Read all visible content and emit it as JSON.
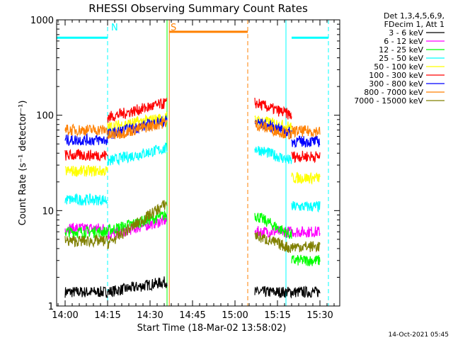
{
  "chart_data": {
    "type": "line",
    "title": "RHESSI Observing Summary Count Rates",
    "xlabel": "Start Time (18-Mar-02 13:58:02)",
    "ylabel": "Count Rate (s⁻¹ detector⁻¹)",
    "yscale": "log",
    "ylim": [
      1,
      1000
    ],
    "xlim_minutes": [
      -3,
      97
    ],
    "x_ticks": [
      {
        "label": "14:00",
        "minutes": 0
      },
      {
        "label": "14:15",
        "minutes": 15
      },
      {
        "label": "14:30",
        "minutes": 30
      },
      {
        "label": "14:45",
        "minutes": 45
      },
      {
        "label": "15:00",
        "minutes": 60
      },
      {
        "label": "15:15",
        "minutes": 75
      },
      {
        "label": "15:30",
        "minutes": 90
      }
    ],
    "y_ticks": [
      {
        "label": "1",
        "value": 1
      },
      {
        "label": "10",
        "value": 10
      },
      {
        "label": "100",
        "value": 100
      },
      {
        "label": "1000",
        "value": 1000
      }
    ],
    "legend_header": [
      "Det 1,3,4,5,6,9,",
      "FDecim 1, Att 1"
    ],
    "legend_position": "top-right, outside plot",
    "series": [
      {
        "name": "3 - 6 keV",
        "color": "#000000",
        "segments": [
          {
            "x": [
              0,
              15
            ],
            "y": [
              1.4,
              1.4
            ]
          },
          {
            "x": [
              15,
              36
            ],
            "y": [
              1.4,
              1.8
            ]
          },
          {
            "x": [
              67,
              90
            ],
            "y": [
              1.4,
              1.4
            ]
          }
        ]
      },
      {
        "name": "6 - 12 keV",
        "color": "#ff00ff",
        "segments": [
          {
            "x": [
              0,
              15
            ],
            "y": [
              6.5,
              6.5
            ]
          },
          {
            "x": [
              15,
              36
            ],
            "y": [
              5.5,
              8
            ]
          },
          {
            "x": [
              67,
              90
            ],
            "y": [
              6,
              6
            ]
          }
        ]
      },
      {
        "name": "12 - 25 keV",
        "color": "#00ff00",
        "segments": [
          {
            "x": [
              0,
              15
            ],
            "y": [
              6,
              6
            ]
          },
          {
            "x": [
              15,
              36
            ],
            "y": [
              6.2,
              9
            ]
          },
          {
            "x": [
              67,
              80
            ],
            "y": [
              9,
              5.5
            ]
          },
          {
            "x": [
              80,
              90
            ],
            "y": [
              3,
              3
            ]
          }
        ]
      },
      {
        "name": "25 - 50 keV",
        "color": "#00ffff",
        "segments": [
          {
            "x": [
              0,
              15
            ],
            "y": [
              13,
              13
            ]
          },
          {
            "x": [
              15,
              36
            ],
            "y": [
              33,
              45
            ]
          },
          {
            "x": [
              67,
              80
            ],
            "y": [
              45,
              33
            ]
          },
          {
            "x": [
              80,
              90
            ],
            "y": [
              11,
              11
            ]
          }
        ]
      },
      {
        "name": "50 - 100 keV",
        "color": "#ffff00",
        "segments": [
          {
            "x": [
              0,
              15
            ],
            "y": [
              26,
              26
            ]
          },
          {
            "x": [
              15,
              36
            ],
            "y": [
              75,
              95
            ]
          },
          {
            "x": [
              67,
              80
            ],
            "y": [
              90,
              75
            ]
          },
          {
            "x": [
              80,
              90
            ],
            "y": [
              22,
              22
            ]
          }
        ]
      },
      {
        "name": "100 - 300 keV",
        "color": "#ff0000",
        "segments": [
          {
            "x": [
              0,
              15
            ],
            "y": [
              38,
              38
            ]
          },
          {
            "x": [
              15,
              36
            ],
            "y": [
              95,
              135
            ]
          },
          {
            "x": [
              67,
              80
            ],
            "y": [
              135,
              100
            ]
          },
          {
            "x": [
              80,
              90
            ],
            "y": [
              37,
              37
            ]
          }
        ]
      },
      {
        "name": "300 - 800 keV",
        "color": "#0000ff",
        "segments": [
          {
            "x": [
              0,
              15
            ],
            "y": [
              55,
              55
            ]
          },
          {
            "x": [
              15,
              36
            ],
            "y": [
              63,
              88
            ]
          },
          {
            "x": [
              67,
              80
            ],
            "y": [
              85,
              65
            ]
          },
          {
            "x": [
              80,
              90
            ],
            "y": [
              53,
              53
            ]
          }
        ]
      },
      {
        "name": "800 - 7000 keV",
        "color": "#ff8000",
        "segments": [
          {
            "x": [
              0,
              15
            ],
            "y": [
              70,
              70
            ]
          },
          {
            "x": [
              15,
              36
            ],
            "y": [
              60,
              85
            ]
          },
          {
            "x": [
              67,
              80
            ],
            "y": [
              80,
              62
            ]
          },
          {
            "x": [
              80,
              90
            ],
            "y": [
              68,
              68
            ]
          }
        ]
      },
      {
        "name": "7000 - 15000 keV",
        "color": "#808000",
        "segments": [
          {
            "x": [
              0,
              15
            ],
            "y": [
              4.8,
              4.8
            ]
          },
          {
            "x": [
              15,
              36
            ],
            "y": [
              4.5,
              12
            ]
          },
          {
            "x": [
              67,
              80
            ],
            "y": [
              5.5,
              4
            ]
          },
          {
            "x": [
              80,
              90
            ],
            "y": [
              4.2,
              4.2
            ]
          }
        ]
      }
    ],
    "annotations": [
      {
        "text": "N",
        "color": "#00ffff",
        "minutes": 15,
        "meaning": "night begins"
      },
      {
        "text": "S",
        "color": "#ff8000",
        "minutes": 36,
        "meaning": "SAA begins"
      }
    ],
    "bars": [
      {
        "color": "#00ffff",
        "x": [
          -3,
          15
        ],
        "y": 650
      },
      {
        "color": "#ff8000",
        "x": [
          36.8,
          64.5
        ],
        "y": 750
      },
      {
        "color": "#00ffff",
        "x": [
          80,
          93
        ],
        "y": 650
      }
    ],
    "vlines": [
      {
        "color": "#00ffff",
        "minutes": 15,
        "style": "dashed"
      },
      {
        "color": "#00ffff",
        "minutes": 78,
        "style": "solid"
      },
      {
        "color": "#00ffff",
        "minutes": 93,
        "style": "dashed"
      },
      {
        "color": "#ff8000",
        "minutes": 36.8,
        "style": "solid"
      },
      {
        "color": "#ff8000",
        "minutes": 64.5,
        "style": "dashed"
      },
      {
        "color": "#00ff00",
        "minutes": 36,
        "style": "solid"
      }
    ],
    "timestamp": "14-Oct-2021 05:45"
  }
}
